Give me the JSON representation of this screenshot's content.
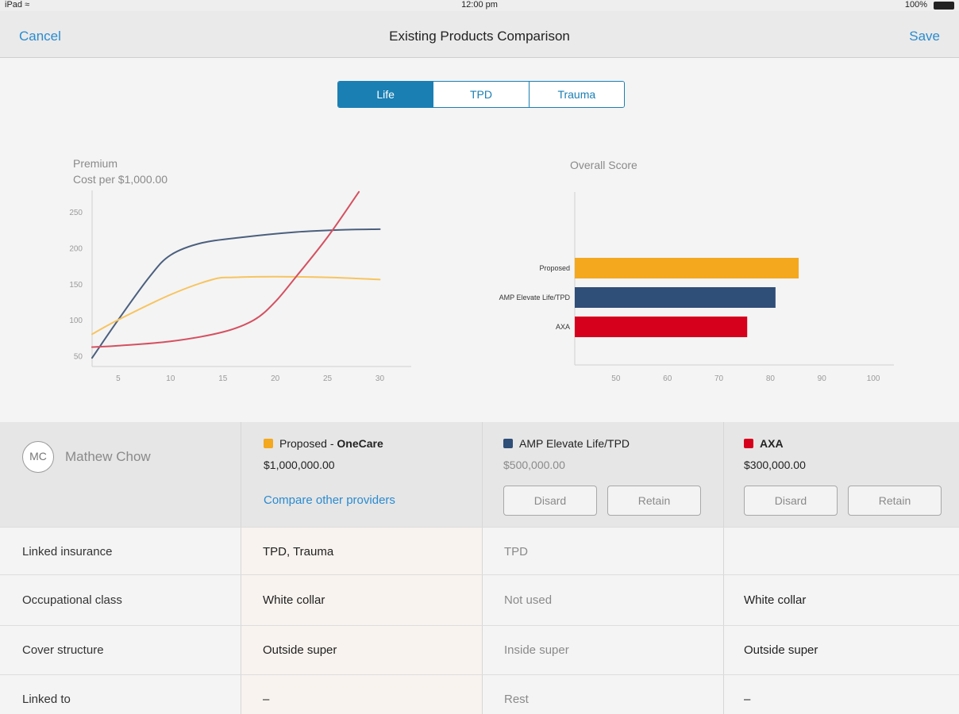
{
  "status": {
    "device": "iPad",
    "wifi_icon": "wifi-icon",
    "time": "12:00 pm",
    "battery": "100%"
  },
  "nav": {
    "cancel": "Cancel",
    "title": "Existing Products Comparison",
    "save": "Save"
  },
  "tabs": [
    {
      "label": "Life",
      "active": true
    },
    {
      "label": "TPD",
      "active": false
    },
    {
      "label": "Trauma",
      "active": false
    }
  ],
  "premium_chart": {
    "title": "Premium",
    "subtitle": "Cost per $1,000.00"
  },
  "score_chart": {
    "title": "Overall Score"
  },
  "chart_data": [
    {
      "type": "line",
      "title": "Premium",
      "subtitle": "Cost per $1,000.00",
      "xlim": [
        2.5,
        33
      ],
      "ylim": [
        35,
        280
      ],
      "xticks": [
        5,
        10,
        15,
        20,
        25,
        30
      ],
      "yticks": [
        50,
        100,
        150,
        200,
        250
      ],
      "series": [
        {
          "name": "AMP Elevate Life/TPD",
          "color": "#4b5f7e",
          "x": [
            2.5,
            5,
            8,
            10,
            13,
            17,
            22,
            26,
            30
          ],
          "y": [
            47,
            100,
            160,
            190,
            207,
            215,
            222,
            225,
            226
          ]
        },
        {
          "name": "Proposed",
          "color": "#f7c45f",
          "x": [
            2.5,
            5,
            10,
            14,
            16,
            20,
            25,
            30
          ],
          "y": [
            80,
            100,
            135,
            156,
            159,
            160,
            159,
            156
          ]
        },
        {
          "name": "AXA",
          "color": "#d55060",
          "x": [
            2.5,
            5,
            10,
            15,
            18,
            20,
            22,
            25,
            28
          ],
          "y": [
            62,
            64,
            70,
            83,
            100,
            125,
            160,
            215,
            278
          ]
        }
      ]
    },
    {
      "type": "bar",
      "orientation": "horizontal",
      "title": "Overall Score",
      "xlim": [
        42,
        104
      ],
      "xticks": [
        50,
        60,
        70,
        80,
        90,
        100
      ],
      "categories": [
        "Proposed",
        "AMP Elevate Life/TPD",
        "AXA"
      ],
      "values": [
        85.5,
        81,
        75.5
      ],
      "colors": [
        "#f3a81d",
        "#2f4e78",
        "#d6001c"
      ]
    }
  ],
  "person": {
    "initials": "MC",
    "name": "Mathew Chow"
  },
  "providers": [
    {
      "label_prefix": "Proposed - ",
      "label_bold": "OneCare",
      "amount": "$1,000,000.00",
      "color": "#f3a81d",
      "link": "Compare other providers"
    },
    {
      "label_bold": "AMP Elevate Life/TPD",
      "amount": "$500,000.00",
      "color": "#2f4e78",
      "discard": "Disard",
      "retain": "Retain"
    },
    {
      "label_bold": "AXA",
      "amount": "$300,000.00",
      "color": "#d6001c",
      "discard": "Disard",
      "retain": "Retain"
    }
  ],
  "rows": [
    {
      "label": "Linked insurance",
      "values": [
        "TPD, Trauma",
        "TPD",
        ""
      ]
    },
    {
      "label": "Occupational class",
      "values": [
        "White collar",
        "Not used",
        "White collar"
      ]
    },
    {
      "label": "Cover structure",
      "values": [
        "Outside super",
        "Inside super",
        "Outside super"
      ]
    },
    {
      "label": "Linked to",
      "values": [
        "–",
        "Rest",
        "–"
      ]
    }
  ]
}
